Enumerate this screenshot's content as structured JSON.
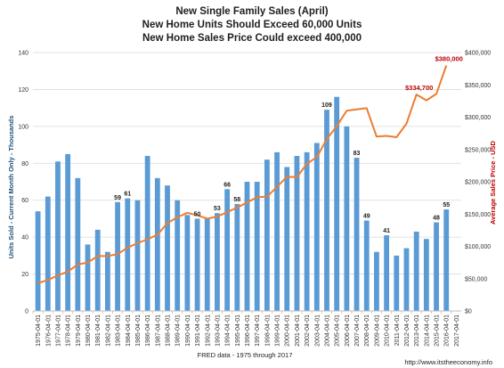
{
  "chart_data": {
    "type": "bar",
    "title_lines": [
      "New Single Family Sales (April)",
      "New Home Units Should Exceed 60,000 Units",
      "New Home Sales Price Could exceed 400,000"
    ],
    "xlabel": "FRED data - 1975 through 2017",
    "ylabel_left": "Units Sold - Current Month Only - Thousands",
    "ylabel_right": "Average Sales Price - USD",
    "ylim_left": [
      0,
      140
    ],
    "yticks_left": [
      "0",
      "20",
      "40",
      "60",
      "80",
      "100",
      "120",
      "140"
    ],
    "ylim_right": [
      0,
      400000
    ],
    "yticks_right": [
      "$0",
      "$50,000",
      "$100,000",
      "$150,000",
      "$200,000",
      "$250,000",
      "$300,000",
      "$350,000",
      "$400,000"
    ],
    "grid": true,
    "categories": [
      "1975-04-01",
      "1976-04-01",
      "1977-04-01",
      "1978-04-01",
      "1979-04-01",
      "1980-04-01",
      "1981-04-01",
      "1982-04-01",
      "1983-04-01",
      "1984-04-01",
      "1985-04-01",
      "1986-04-01",
      "1987-04-01",
      "1988-04-01",
      "1989-04-01",
      "1990-04-01",
      "1991-04-01",
      "1992-04-01",
      "1993-04-01",
      "1994-04-01",
      "1995-04-01",
      "1996-04-01",
      "1997-04-01",
      "1998-04-01",
      "1999-04-01",
      "2000-04-01",
      "2001-04-01",
      "2002-04-01",
      "2003-04-01",
      "2004-04-01",
      "2005-04-01",
      "2006-04-01",
      "2007-04-01",
      "2008-04-01",
      "2009-04-01",
      "2010-04-01",
      "2011-04-01",
      "2012-04-01",
      "2013-04-01",
      "2014-04-01",
      "2015-04-01",
      "2016-04-01",
      "2017-04-01"
    ],
    "series": [
      {
        "kind": "bar",
        "axis": "left",
        "color": "#5b9bd5",
        "values": [
          54,
          62,
          81,
          85,
          72,
          36,
          44,
          32,
          59,
          61,
          60,
          84,
          72,
          68,
          60,
          52,
          50,
          50,
          53,
          66,
          58,
          70,
          70,
          82,
          86,
          78,
          84,
          86,
          91,
          109,
          116,
          100,
          83,
          49,
          32,
          41,
          30,
          34,
          43,
          39,
          48,
          55,
          null
        ],
        "data_labels": {
          "8": "59",
          "9": "61",
          "16": "50",
          "18": "53",
          "19": "66",
          "20": "58",
          "29": "109",
          "32": "83",
          "33": "49",
          "35": "41",
          "40": "48",
          "41": "55"
        }
      },
      {
        "kind": "line",
        "axis": "right",
        "color": "#ed7d31",
        "values": [
          43000,
          48000,
          55000,
          61000,
          72000,
          75000,
          85000,
          85000,
          88000,
          98000,
          105000,
          111000,
          118000,
          136000,
          145000,
          152000,
          148000,
          143000,
          146000,
          153000,
          160000,
          168000,
          176000,
          177000,
          192000,
          208000,
          207000,
          228000,
          238000,
          266000,
          286000,
          310000,
          312000,
          314000,
          270000,
          271000,
          269000,
          290000,
          335000,
          326000,
          336000,
          380000,
          null
        ],
        "point_labels": {
          "38": "$334,700",
          "41": "$380,000"
        }
      }
    ],
    "footer": "http://www.itstheeconomy.info"
  }
}
